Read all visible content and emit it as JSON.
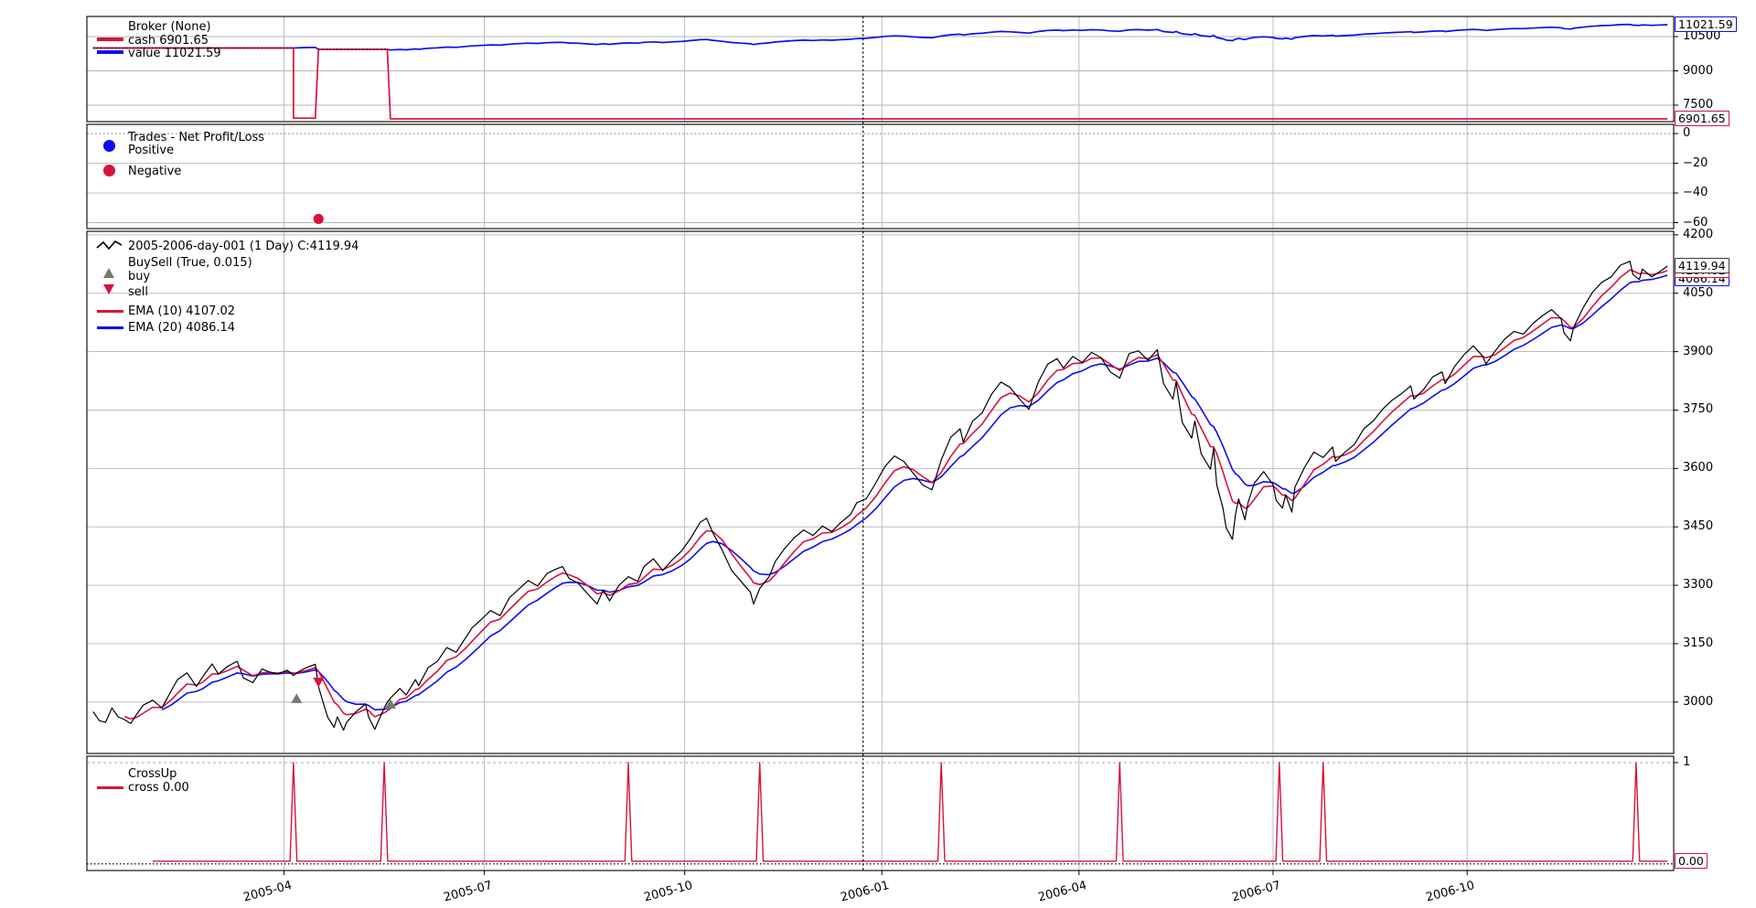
{
  "colors": {
    "red": "#d5143c",
    "blue": "#0d0df0",
    "black": "#000000",
    "dark": "#3c3c3c",
    "buy_gray": "#6f7a70",
    "grid": "#b5b5b5",
    "zero_dash": "#888888"
  },
  "broker_panel": {
    "title": "Broker (None)",
    "cash_label": "cash 6901.65",
    "value_label": "value 11021.59"
  },
  "trades_panel": {
    "title": "Trades - Net Profit/Loss",
    "positive_label": "Positive",
    "negative_label": "Negative"
  },
  "main_panel": {
    "series_label": "2005-2006-day-001 (1 Day) C:4119.94",
    "buysell_label": "BuySell (True, 0.015)",
    "buy_label": "buy",
    "sell_label": "sell",
    "ema10_label": "EMA (10) 4107.02",
    "ema20_label": "EMA (20) 4086.14"
  },
  "crossup_panel": {
    "title": "CrossUp",
    "cross_label": "cross 0.00"
  },
  "xaxis": {
    "xlim": [
      -2,
      505
    ],
    "tick_days": [
      61,
      125,
      189,
      252,
      315,
      377,
      439
    ],
    "tick_labels": [
      "2005-04",
      "2005-07",
      "2005-10",
      "2006-01",
      "2006-04",
      "2006-07",
      "2006-10"
    ],
    "separator_day": 246
  },
  "chart_data": [
    {
      "panel": "broker",
      "type": "line",
      "title": "Broker (None)",
      "ylim": [
        6780,
        11380
      ],
      "yticks": [
        {
          "value": 10500,
          "label": "10500"
        },
        {
          "value": 9000,
          "label": "9000"
        },
        {
          "value": 7500,
          "label": "7500"
        }
      ],
      "cash_final": 6901.65,
      "value_final": 11021.59,
      "cash_points": [
        [
          0,
          10000
        ],
        [
          64,
          10000
        ],
        [
          64,
          6931
        ],
        [
          71,
          6931
        ],
        [
          72,
          9943
        ],
        [
          94,
          9943
        ],
        [
          95,
          6901.65
        ],
        [
          503,
          6901.65
        ]
      ],
      "value_segments": [
        {
          "d0": 0,
          "d1": 64,
          "const": 10000
        },
        {
          "d0": 65,
          "d1": 71,
          "offset": 6931
        },
        {
          "d0": 72,
          "d1": 94,
          "const": 9943
        },
        {
          "d0": 95,
          "d1": 503,
          "offset": 6901.65
        }
      ],
      "value_tags": [
        {
          "label": "11021.59",
          "value": 11021.59,
          "color_key": "blue"
        },
        {
          "label": "6901.65",
          "value": 6901.65,
          "color_key": "red"
        }
      ]
    },
    {
      "panel": "trades",
      "type": "scatter",
      "title": "Trades - Net Profit/Loss",
      "ylim": [
        -64,
        6.2
      ],
      "yticks": [
        {
          "value": 0,
          "label": "0"
        },
        {
          "value": -20,
          "label": "−20"
        },
        {
          "value": -40,
          "label": "−40"
        },
        {
          "value": -60,
          "label": "−60"
        }
      ],
      "zero_line": 0,
      "positive_points": [],
      "negative_points": [
        [
          72,
          -57.5
        ]
      ]
    },
    {
      "panel": "main",
      "type": "line",
      "title": "2005-2006-day-001 (1 Day)",
      "close_last": 4119.94,
      "ylim": [
        2868,
        4209
      ],
      "yticks": [
        {
          "value": 4200,
          "label": "4200"
        },
        {
          "value": 4050,
          "label": "4050"
        },
        {
          "value": 3900,
          "label": "3900"
        },
        {
          "value": 3750,
          "label": "3750"
        },
        {
          "value": 3600,
          "label": "3600"
        },
        {
          "value": 3450,
          "label": "3450"
        },
        {
          "value": 3300,
          "label": "3300"
        },
        {
          "value": 3150,
          "label": "3150"
        },
        {
          "value": 3000,
          "label": "3000"
        }
      ],
      "close_points": [
        [
          0,
          2975
        ],
        [
          2,
          2952
        ],
        [
          4,
          2948
        ],
        [
          6,
          2985
        ],
        [
          8,
          2962
        ],
        [
          10,
          2955
        ],
        [
          12,
          2945
        ],
        [
          14,
          2970
        ],
        [
          16,
          2992
        ],
        [
          19,
          3005
        ],
        [
          22,
          2985
        ],
        [
          25,
          3030
        ],
        [
          27,
          3058
        ],
        [
          30,
          3075
        ],
        [
          33,
          3040
        ],
        [
          35,
          3065
        ],
        [
          38,
          3098
        ],
        [
          40,
          3072
        ],
        [
          43,
          3092
        ],
        [
          46,
          3105
        ],
        [
          48,
          3062
        ],
        [
          51,
          3050
        ],
        [
          54,
          3085
        ],
        [
          56,
          3078
        ],
        [
          59,
          3072
        ],
        [
          62,
          3082
        ],
        [
          64,
          3068
        ],
        [
          65,
          3075
        ],
        [
          68,
          3088
        ],
        [
          71,
          3097
        ],
        [
          72,
          3040
        ],
        [
          74,
          2985
        ],
        [
          75,
          2960
        ],
        [
          77,
          2935
        ],
        [
          78,
          2962
        ],
        [
          80,
          2928
        ],
        [
          81,
          2948
        ],
        [
          84,
          2975
        ],
        [
          87,
          2995
        ],
        [
          88,
          2962
        ],
        [
          90,
          2930
        ],
        [
          93,
          2985
        ],
        [
          94,
          3000
        ],
        [
          95,
          3010
        ],
        [
          98,
          3035
        ],
        [
          100,
          3018
        ],
        [
          103,
          3058
        ],
        [
          104,
          3042
        ],
        [
          107,
          3088
        ],
        [
          110,
          3105
        ],
        [
          113,
          3140
        ],
        [
          116,
          3128
        ],
        [
          119,
          3165
        ],
        [
          121,
          3190
        ],
        [
          124,
          3212
        ],
        [
          127,
          3235
        ],
        [
          130,
          3222
        ],
        [
          133,
          3268
        ],
        [
          136,
          3290
        ],
        [
          139,
          3312
        ],
        [
          142,
          3298
        ],
        [
          145,
          3330
        ],
        [
          148,
          3342
        ],
        [
          150,
          3348
        ],
        [
          152,
          3318
        ],
        [
          155,
          3305
        ],
        [
          158,
          3278
        ],
        [
          161,
          3252
        ],
        [
          163,
          3288
        ],
        [
          165,
          3260
        ],
        [
          168,
          3300
        ],
        [
          171,
          3322
        ],
        [
          174,
          3310
        ],
        [
          176,
          3348
        ],
        [
          179,
          3368
        ],
        [
          182,
          3338
        ],
        [
          185,
          3365
        ],
        [
          188,
          3388
        ],
        [
          191,
          3422
        ],
        [
          194,
          3462
        ],
        [
          196,
          3472
        ],
        [
          198,
          3435
        ],
        [
          201,
          3390
        ],
        [
          204,
          3338
        ],
        [
          207,
          3310
        ],
        [
          210,
          3282
        ],
        [
          211,
          3252
        ],
        [
          213,
          3292
        ],
        [
          216,
          3322
        ],
        [
          218,
          3362
        ],
        [
          221,
          3395
        ],
        [
          224,
          3422
        ],
        [
          227,
          3442
        ],
        [
          230,
          3428
        ],
        [
          233,
          3452
        ],
        [
          236,
          3438
        ],
        [
          239,
          3462
        ],
        [
          242,
          3482
        ],
        [
          244,
          3512
        ],
        [
          247,
          3522
        ],
        [
          250,
          3562
        ],
        [
          253,
          3605
        ],
        [
          256,
          3632
        ],
        [
          259,
          3618
        ],
        [
          262,
          3588
        ],
        [
          265,
          3558
        ],
        [
          268,
          3545
        ],
        [
          271,
          3622
        ],
        [
          274,
          3680
        ],
        [
          277,
          3702
        ],
        [
          278,
          3668
        ],
        [
          281,
          3722
        ],
        [
          284,
          3742
        ],
        [
          287,
          3790
        ],
        [
          290,
          3822
        ],
        [
          293,
          3808
        ],
        [
          296,
          3778
        ],
        [
          299,
          3752
        ],
        [
          302,
          3822
        ],
        [
          305,
          3868
        ],
        [
          308,
          3882
        ],
        [
          310,
          3858
        ],
        [
          313,
          3888
        ],
        [
          316,
          3872
        ],
        [
          319,
          3898
        ],
        [
          322,
          3885
        ],
        [
          325,
          3848
        ],
        [
          328,
          3832
        ],
        [
          331,
          3895
        ],
        [
          334,
          3902
        ],
        [
          337,
          3878
        ],
        [
          340,
          3905
        ],
        [
          342,
          3818
        ],
        [
          345,
          3778
        ],
        [
          346,
          3822
        ],
        [
          348,
          3718
        ],
        [
          351,
          3678
        ],
        [
          352,
          3722
        ],
        [
          354,
          3638
        ],
        [
          357,
          3598
        ],
        [
          358,
          3652
        ],
        [
          359,
          3558
        ],
        [
          361,
          3498
        ],
        [
          362,
          3448
        ],
        [
          364,
          3418
        ],
        [
          365,
          3482
        ],
        [
          366,
          3522
        ],
        [
          368,
          3468
        ],
        [
          369,
          3512
        ],
        [
          371,
          3562
        ],
        [
          374,
          3592
        ],
        [
          377,
          3558
        ],
        [
          378,
          3518
        ],
        [
          380,
          3498
        ],
        [
          381,
          3532
        ],
        [
          383,
          3488
        ],
        [
          384,
          3552
        ],
        [
          387,
          3602
        ],
        [
          390,
          3642
        ],
        [
          393,
          3628
        ],
        [
          396,
          3655
        ],
        [
          397,
          3618
        ],
        [
          400,
          3642
        ],
        [
          403,
          3662
        ],
        [
          406,
          3702
        ],
        [
          409,
          3722
        ],
        [
          412,
          3752
        ],
        [
          415,
          3775
        ],
        [
          418,
          3792
        ],
        [
          421,
          3812
        ],
        [
          422,
          3778
        ],
        [
          425,
          3802
        ],
        [
          428,
          3835
        ],
        [
          431,
          3848
        ],
        [
          432,
          3818
        ],
        [
          435,
          3862
        ],
        [
          438,
          3892
        ],
        [
          441,
          3915
        ],
        [
          444,
          3888
        ],
        [
          445,
          3868
        ],
        [
          448,
          3902
        ],
        [
          451,
          3932
        ],
        [
          454,
          3952
        ],
        [
          457,
          3945
        ],
        [
          460,
          3972
        ],
        [
          463,
          3992
        ],
        [
          466,
          4008
        ],
        [
          469,
          3985
        ],
        [
          470,
          3948
        ],
        [
          472,
          3928
        ],
        [
          473,
          3962
        ],
        [
          476,
          4012
        ],
        [
          479,
          4052
        ],
        [
          482,
          4078
        ],
        [
          485,
          4092
        ],
        [
          488,
          4122
        ],
        [
          491,
          4132
        ],
        [
          492,
          4098
        ],
        [
          494,
          4085
        ],
        [
          495,
          4112
        ],
        [
          498,
          4092
        ],
        [
          501,
          4108
        ],
        [
          503,
          4119.94
        ]
      ],
      "ema": [
        {
          "period": 10,
          "final": 4107.02,
          "color_key": "red",
          "start_day": 10
        },
        {
          "period": 20,
          "final": 4086.14,
          "color_key": "blue",
          "start_day": 20
        }
      ],
      "buy_markers": [
        [
          65,
          3008
        ],
        [
          95,
          2994
        ]
      ],
      "sell_markers": [
        [
          72,
          3052
        ]
      ],
      "value_tags": [
        {
          "label": "4086.14",
          "value": 4086.14,
          "color_key": "blue"
        },
        {
          "label": "4107.02",
          "value": 4107.02,
          "color_key": "red"
        },
        {
          "label": "4119.94",
          "value": 4119.94,
          "color_key": "dark"
        }
      ]
    },
    {
      "panel": "crossup",
      "type": "line",
      "title": "CrossUp",
      "cross_level": 0.0,
      "ylim": [
        -0.095,
        1.065
      ],
      "yticks": [
        {
          "value": 1,
          "label": "1"
        }
      ],
      "start_day": 19,
      "baseline": 0,
      "spike_value": 1,
      "spike_days": [
        64,
        93,
        171,
        213,
        271,
        328,
        379,
        393,
        493
      ],
      "value_tags": [
        {
          "label": "0.00",
          "value": 0,
          "color_key": "red"
        }
      ]
    }
  ]
}
